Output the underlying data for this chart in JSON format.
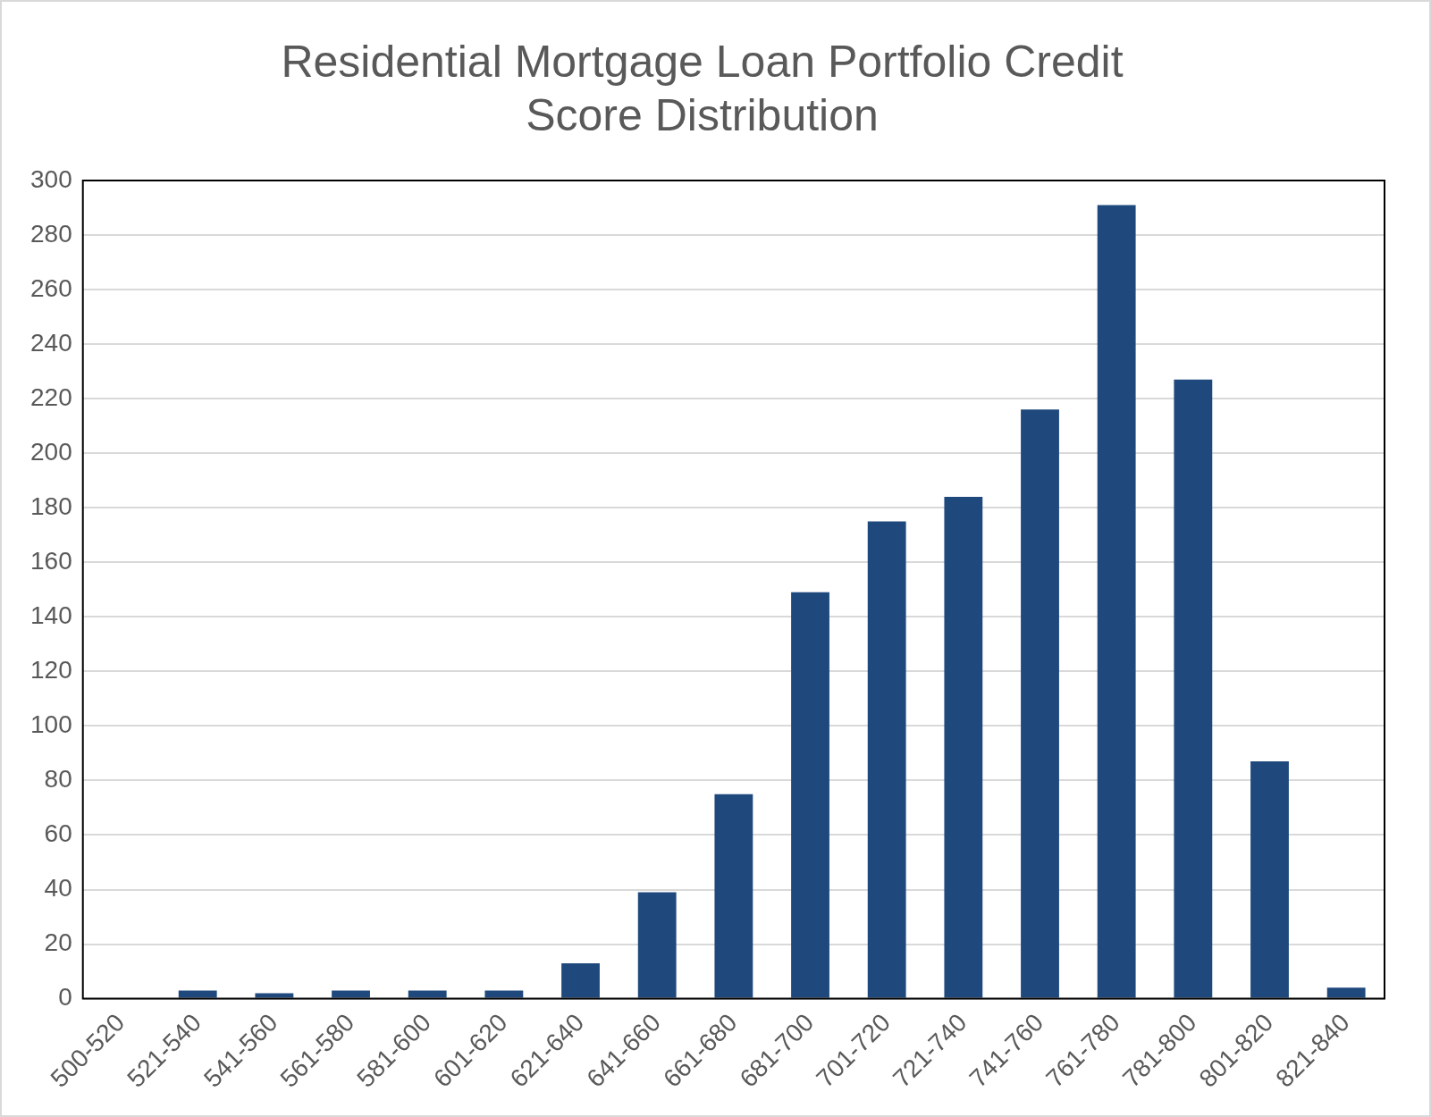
{
  "chart_data": {
    "type": "bar",
    "title": "Residential Mortgage Loan Portfolio Credit Score Distribution",
    "categories": [
      "500-520",
      "521-540",
      "541-560",
      "561-580",
      "581-600",
      "601-620",
      "621-640",
      "641-660",
      "661-680",
      "681-700",
      "701-720",
      "721-740",
      "741-760",
      "761-780",
      "781-800",
      "801-820",
      "821-840"
    ],
    "values": [
      0,
      3,
      2,
      3,
      3,
      3,
      13,
      39,
      75,
      149,
      175,
      184,
      216,
      291,
      227,
      87,
      4
    ],
    "color": "#1f497d",
    "ylim": [
      0,
      300
    ],
    "yticks": [
      0,
      20,
      40,
      60,
      80,
      100,
      120,
      140,
      160,
      180,
      200,
      220,
      240,
      260,
      280,
      300
    ],
    "grid": "y",
    "legend": false
  }
}
